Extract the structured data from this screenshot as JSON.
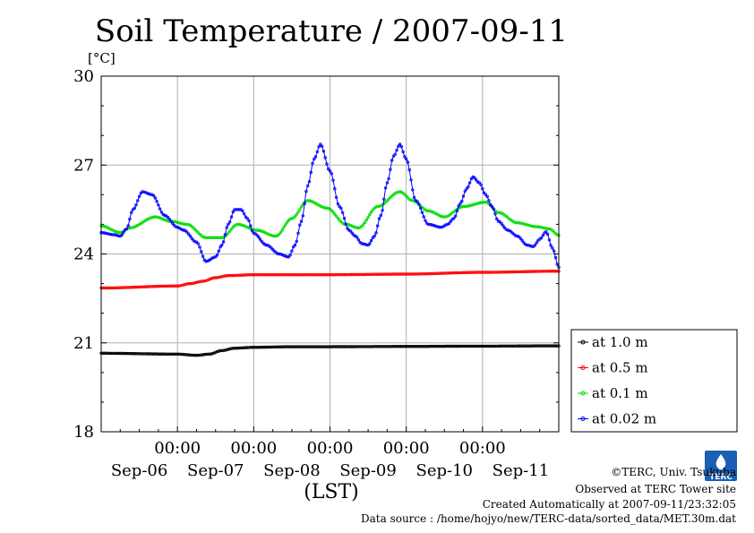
{
  "chart_data": {
    "type": "line",
    "title": "Soil Temperature / 2007-09-11",
    "ylabel": "[°C]",
    "xlabel": "(LST)",
    "ylim": [
      18,
      30
    ],
    "yticks": [
      18,
      21,
      24,
      27,
      30
    ],
    "x_range_hours_from_sep06_00": [
      0,
      144
    ],
    "time_tick_labels": [
      "00:00",
      "00:00",
      "00:00",
      "00:00",
      "00:00"
    ],
    "day_labels": [
      "Sep-06",
      "Sep-07",
      "Sep-08",
      "Sep-09",
      "Sep-10",
      "Sep-11"
    ],
    "grid": true,
    "legend_position": "right",
    "series": [
      {
        "name": "at 1.0 m",
        "color": "#000000",
        "x": [
          0,
          24,
          30,
          34,
          38,
          42,
          48,
          60,
          72,
          96,
          120,
          144
        ],
        "y": [
          20.65,
          20.62,
          20.58,
          20.62,
          20.74,
          20.82,
          20.85,
          20.87,
          20.87,
          20.88,
          20.89,
          20.9
        ]
      },
      {
        "name": "at 0.5 m",
        "color": "#ff0000",
        "x": [
          0,
          24,
          28,
          32,
          36,
          40,
          48,
          72,
          96,
          120,
          144
        ],
        "y": [
          22.85,
          22.92,
          23.0,
          23.08,
          23.2,
          23.27,
          23.3,
          23.3,
          23.32,
          23.38,
          23.42
        ]
      },
      {
        "name": "at 0.1 m",
        "color": "#00dd00",
        "x": [
          0,
          6,
          9,
          17,
          22,
          27,
          33,
          38,
          43,
          49,
          55,
          60,
          65,
          71,
          77,
          81,
          87,
          94,
          98,
          103,
          108,
          114,
          121,
          125,
          131,
          137,
          141,
          144
        ],
        "y": [
          24.95,
          24.72,
          24.88,
          25.25,
          25.1,
          25.0,
          24.55,
          24.55,
          25.0,
          24.8,
          24.6,
          25.2,
          25.8,
          25.55,
          25.0,
          24.88,
          25.6,
          26.1,
          25.8,
          25.45,
          25.25,
          25.6,
          25.75,
          25.4,
          25.05,
          24.92,
          24.85,
          24.63
        ]
      },
      {
        "name": "at 0.02 m",
        "color": "#0000ff",
        "x": [
          0,
          4,
          6,
          8,
          10,
          13,
          16,
          20,
          24,
          26,
          30,
          33,
          36,
          38,
          40,
          42,
          44,
          46,
          48,
          52,
          56,
          59,
          61,
          63,
          65,
          67,
          69,
          72,
          75,
          78,
          80,
          82,
          84,
          86,
          88,
          90,
          92,
          94,
          96,
          99,
          103,
          107,
          109,
          111,
          113,
          115,
          117,
          119,
          121,
          123,
          125,
          128,
          131,
          134,
          136,
          138,
          140,
          142,
          144
        ],
        "y": [
          24.72,
          24.65,
          24.6,
          24.85,
          25.5,
          26.1,
          26.0,
          25.3,
          24.9,
          24.8,
          24.4,
          23.75,
          23.9,
          24.3,
          25.0,
          25.5,
          25.5,
          25.2,
          24.7,
          24.3,
          24.0,
          23.9,
          24.3,
          25.1,
          26.3,
          27.2,
          27.7,
          26.8,
          25.6,
          24.8,
          24.6,
          24.35,
          24.3,
          24.6,
          25.3,
          26.4,
          27.3,
          27.7,
          27.2,
          25.8,
          25.0,
          24.9,
          25.0,
          25.2,
          25.7,
          26.2,
          26.6,
          26.4,
          26.0,
          25.6,
          25.1,
          24.8,
          24.6,
          24.3,
          24.25,
          24.5,
          24.75,
          24.2,
          23.55
        ]
      }
    ]
  },
  "footer": {
    "copyright": "©TERC, Univ. Tsukuba",
    "observed": "Observed at TERC Tower site",
    "created": "Created Automatically at 2007-09-11/23:32:05",
    "source": "Data source : /home/hojyo/new/TERC-data/sorted_data/MET.30m.dat"
  },
  "logo": {
    "text": "TERC"
  }
}
